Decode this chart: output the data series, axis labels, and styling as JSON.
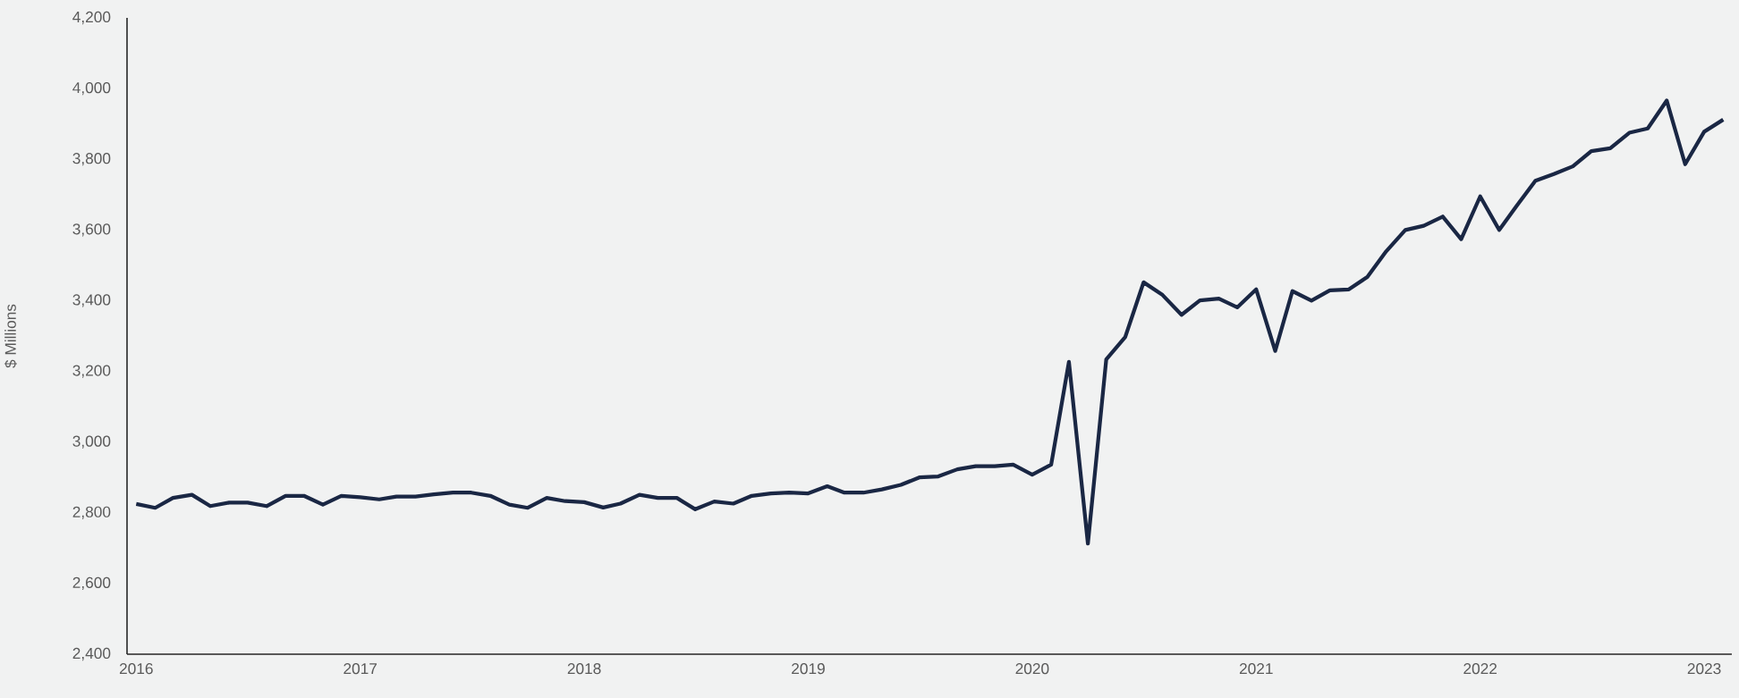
{
  "chart_data": {
    "type": "line",
    "ylabel": "$ Millions",
    "x": [
      "2016-01",
      "2016-02",
      "2016-03",
      "2016-04",
      "2016-05",
      "2016-06",
      "2016-07",
      "2016-08",
      "2016-09",
      "2016-10",
      "2016-11",
      "2016-12",
      "2017-01",
      "2017-02",
      "2017-03",
      "2017-04",
      "2017-05",
      "2017-06",
      "2017-07",
      "2017-08",
      "2017-09",
      "2017-10",
      "2017-11",
      "2017-12",
      "2018-01",
      "2018-02",
      "2018-03",
      "2018-04",
      "2018-05",
      "2018-06",
      "2018-07",
      "2018-08",
      "2018-09",
      "2018-10",
      "2018-11",
      "2018-12",
      "2019-01",
      "2019-02",
      "2019-03",
      "2019-04",
      "2019-05",
      "2019-06",
      "2019-07",
      "2019-08",
      "2019-09",
      "2019-10",
      "2019-11",
      "2019-12",
      "2020-01",
      "2020-02",
      "2020-03",
      "2020-04",
      "2020-05",
      "2020-06",
      "2020-07",
      "2020-08",
      "2020-09",
      "2020-10",
      "2020-11",
      "2020-12",
      "2021-01",
      "2021-02",
      "2021-03",
      "2021-04",
      "2021-05",
      "2021-06",
      "2021-07",
      "2021-08",
      "2021-09",
      "2021-10",
      "2021-11",
      "2021-12",
      "2022-01",
      "2022-02",
      "2022-03",
      "2022-04",
      "2022-05",
      "2022-06",
      "2022-07",
      "2022-08",
      "2022-09",
      "2022-10",
      "2022-11",
      "2022-12",
      "2023-01",
      "2023-02"
    ],
    "series": [
      {
        "color": "#1a2744",
        "values": [
          2825,
          2814,
          2842,
          2851,
          2819,
          2829,
          2829,
          2819,
          2848,
          2848,
          2823,
          2848,
          2844,
          2838,
          2846,
          2846,
          2852,
          2857,
          2857,
          2848,
          2823,
          2814,
          2842,
          2833,
          2830,
          2815,
          2826,
          2851,
          2842,
          2842,
          2810,
          2832,
          2826,
          2848,
          2855,
          2857,
          2855,
          2875,
          2857,
          2857,
          2866,
          2879,
          2900,
          2903,
          2923,
          2932,
          2932,
          2936,
          2908,
          2936,
          3227,
          2713,
          3234,
          3297,
          3452,
          3416,
          3360,
          3401,
          3406,
          3381,
          3432,
          3258,
          3427,
          3400,
          3429,
          3432,
          3467,
          3540,
          3600,
          3612,
          3638,
          3574,
          3695,
          3600,
          3667,
          3739,
          3758,
          3780,
          3823,
          3831,
          3875,
          3887,
          3966,
          3786,
          3878,
          3912
        ]
      }
    ],
    "xlim": [
      "2015-12-17",
      "2023-02-15"
    ],
    "xticks": [
      "2016",
      "2017",
      "2018",
      "2019",
      "2020",
      "2021",
      "2022",
      "2023"
    ],
    "ylim": [
      2400,
      4200
    ],
    "yticks": [
      {
        "value": 2400,
        "label": "2,400"
      },
      {
        "value": 2600,
        "label": "2,600"
      },
      {
        "value": 2800,
        "label": "2,800"
      },
      {
        "value": 3000,
        "label": "3,000"
      },
      {
        "value": 3200,
        "label": "3,200"
      },
      {
        "value": 3400,
        "label": "3,400"
      },
      {
        "value": 3600,
        "label": "3,600"
      },
      {
        "value": 3800,
        "label": "3,800"
      },
      {
        "value": 4000,
        "label": "4,000"
      },
      {
        "value": 4200,
        "label": "4,200"
      }
    ],
    "grid": false,
    "marker": "none",
    "line_style": "solid"
  }
}
